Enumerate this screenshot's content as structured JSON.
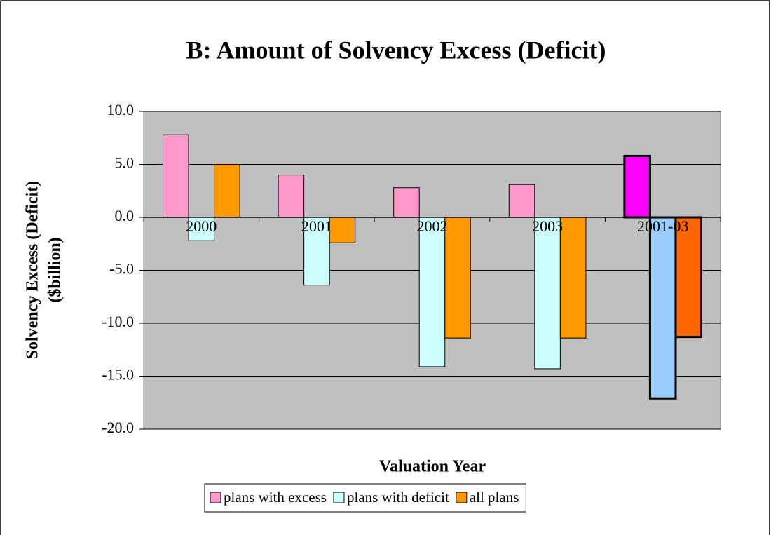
{
  "chart_data": {
    "type": "bar",
    "title": "B: Amount of Solvency Excess (Deficit)",
    "ylabel": [
      "Solvency Excess (Deficit)",
      "($billion)"
    ],
    "xlabel": "Valuation Year",
    "categories": [
      "2000",
      "2001",
      "2002",
      "2003",
      "2001-03"
    ],
    "series": [
      {
        "name": "plans with excess",
        "color": "#ff99cc",
        "colors": [
          "#ff99cc",
          "#ff99cc",
          "#ff99cc",
          "#ff99cc",
          "#ff00ff"
        ],
        "values": [
          7.8,
          4.0,
          2.8,
          3.1,
          5.8
        ]
      },
      {
        "name": "plans with deficit",
        "color": "#ccffff",
        "colors": [
          "#ccffff",
          "#ccffff",
          "#ccffff",
          "#ccffff",
          "#99ccff"
        ],
        "values": [
          -2.2,
          -6.4,
          -14.1,
          -14.3,
          -17.1
        ]
      },
      {
        "name": "all plans",
        "color": "#ff9900",
        "colors": [
          "#ff9900",
          "#ff9900",
          "#ff9900",
          "#ff9900",
          "#ff6600"
        ],
        "values": [
          5.0,
          -2.4,
          -11.4,
          -11.4,
          -11.3
        ]
      }
    ],
    "ylim": [
      -20,
      10
    ],
    "yticks": [
      {
        "value": -20,
        "label": "-20.0"
      },
      {
        "value": -15,
        "label": "-15.0"
      },
      {
        "value": -10,
        "label": "-10.0"
      },
      {
        "value": -5,
        "label": "-5.0"
      },
      {
        "value": 0,
        "label": "0.0"
      },
      {
        "value": 5,
        "label": "5.0"
      },
      {
        "value": 10,
        "label": "10.0"
      }
    ],
    "grid": true,
    "legend": "bottom"
  }
}
